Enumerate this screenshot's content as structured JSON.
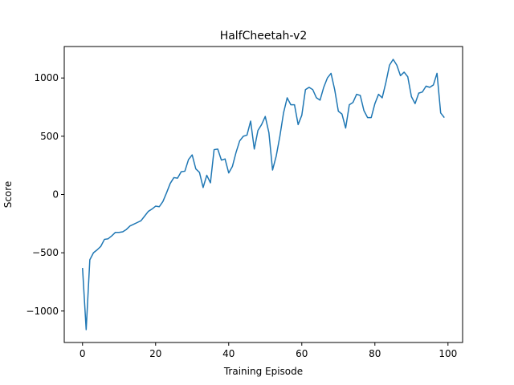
{
  "chart_data": {
    "type": "line",
    "title": "HalfCheetah-v2",
    "xlabel": "Training Episode",
    "ylabel": "Score",
    "xlim": [
      -5,
      104
    ],
    "ylim": [
      -1270,
      1270
    ],
    "xticks": [
      0,
      20,
      40,
      60,
      80,
      100
    ],
    "yticks": [
      -1000,
      -500,
      0,
      500,
      1000
    ],
    "ytick_labels": [
      "−1000",
      "−500",
      "0",
      "500",
      "1000"
    ],
    "grid": false,
    "series": [
      {
        "color": "#1f77b4",
        "x": [
          0,
          1,
          2,
          3,
          4,
          5,
          6,
          7,
          8,
          9,
          10,
          11,
          12,
          13,
          14,
          15,
          16,
          17,
          18,
          19,
          20,
          21,
          22,
          23,
          24,
          25,
          26,
          27,
          28,
          29,
          30,
          31,
          32,
          33,
          34,
          35,
          36,
          37,
          38,
          39,
          40,
          41,
          42,
          43,
          44,
          45,
          46,
          47,
          48,
          49,
          50,
          51,
          52,
          53,
          54,
          55,
          56,
          57,
          58,
          59,
          60,
          61,
          62,
          63,
          64,
          65,
          66,
          67,
          68,
          69,
          70,
          71,
          72,
          73,
          74,
          75,
          76,
          77,
          78,
          79,
          80,
          81,
          82,
          83,
          84,
          85,
          86,
          87,
          88,
          89,
          90,
          91,
          92,
          93,
          94,
          95,
          96,
          97,
          98,
          99
        ],
        "values": [
          -630,
          -1160,
          -560,
          -500,
          -475,
          -445,
          -385,
          -380,
          -355,
          -325,
          -325,
          -320,
          -300,
          -270,
          -255,
          -240,
          -225,
          -185,
          -145,
          -125,
          -100,
          -105,
          -60,
          15,
          95,
          145,
          140,
          195,
          200,
          300,
          340,
          220,
          190,
          60,
          165,
          100,
          385,
          390,
          295,
          305,
          185,
          240,
          360,
          460,
          500,
          510,
          630,
          390,
          550,
          600,
          670,
          530,
          210,
          330,
          500,
          700,
          830,
          770,
          770,
          600,
          680,
          900,
          920,
          900,
          830,
          810,
          920,
          1000,
          1040,
          900,
          715,
          690,
          570,
          770,
          790,
          860,
          850,
          720,
          660,
          660,
          780,
          860,
          830,
          960,
          1110,
          1160,
          1110,
          1020,
          1050,
          1010,
          840,
          780,
          870,
          880,
          930,
          920,
          940,
          1040,
          700,
          660
        ]
      }
    ]
  }
}
